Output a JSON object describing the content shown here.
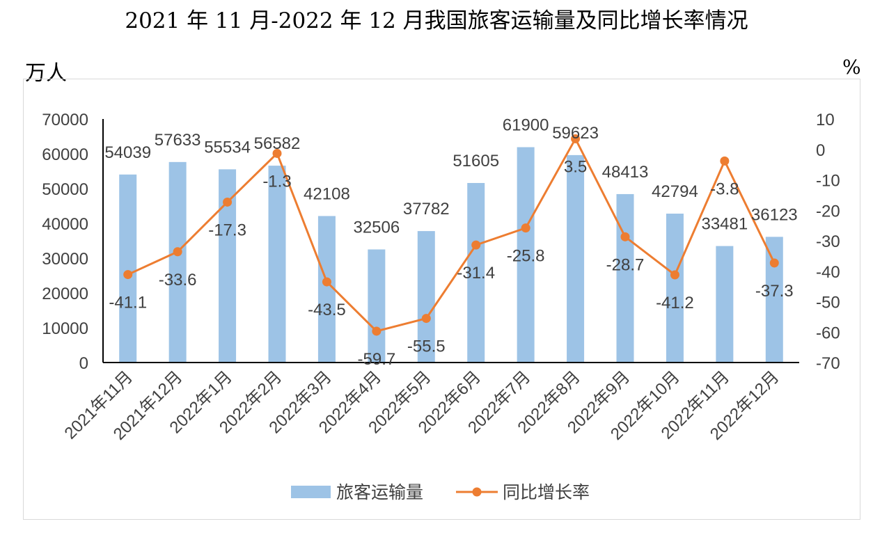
{
  "chart_data": {
    "type": "bar+line",
    "title": "2021 年 11 月-2022 年 12 月我国旅客运输量及同比增长率情况",
    "ylabel_left": "万人",
    "ylabel_right": "%",
    "categories": [
      "2021年11月",
      "2021年12月",
      "2022年1月",
      "2022年2月",
      "2022年3月",
      "2022年4月",
      "2022年5月",
      "2022年6月",
      "2022年7月",
      "2022年8月",
      "2022年9月",
      "2022年10月",
      "2022年11月",
      "2022年12月"
    ],
    "series": [
      {
        "name": "旅客运输量",
        "type": "bar",
        "axis": "left",
        "color": "#9DC3E6",
        "values": [
          54039,
          57633,
          55534,
          56582,
          42108,
          32506,
          37782,
          51605,
          61900,
          59623,
          48413,
          42794,
          33481,
          36123
        ]
      },
      {
        "name": "同比增长率",
        "type": "line",
        "axis": "right",
        "color": "#ED7D31",
        "values": [
          -41.1,
          -33.6,
          -17.3,
          -1.3,
          -43.5,
          -59.7,
          -55.5,
          -31.4,
          -25.8,
          3.5,
          -28.7,
          -41.2,
          -3.8,
          -37.3
        ]
      }
    ],
    "ylim_left": [
      0,
      70000
    ],
    "yticks_left": [
      0,
      10000,
      20000,
      30000,
      40000,
      50000,
      60000,
      70000
    ],
    "ylim_right": [
      -70,
      10
    ],
    "yticks_right": [
      10,
      0,
      -10,
      -20,
      -30,
      -40,
      -50,
      -60,
      -70
    ],
    "grid": false,
    "legend": "bottom"
  }
}
